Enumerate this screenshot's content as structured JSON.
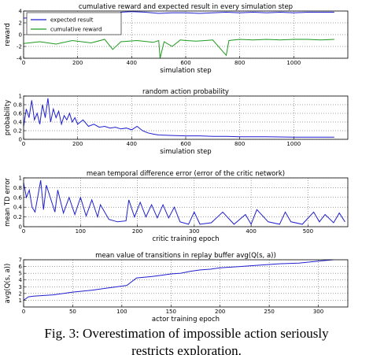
{
  "chart_data": [
    {
      "type": "line",
      "title": "cumulative reward and expected result in every simulation step",
      "xlabel": "simulation step",
      "ylabel": "reward",
      "xlim": [
        0,
        1200
      ],
      "ylim": [
        -4,
        4
      ],
      "xticks": [
        0,
        200,
        400,
        600,
        800,
        1000
      ],
      "yticks": [
        -4,
        -2,
        0,
        2,
        4
      ],
      "grid": true,
      "legend": "top-left",
      "series": [
        {
          "name": "expected result",
          "color": "#1f1fcf",
          "x": [
            0,
            60,
            120,
            180,
            250,
            300,
            330,
            345,
            360,
            400,
            450,
            500,
            550,
            600,
            650,
            700,
            750,
            800,
            850,
            900,
            950,
            1000,
            1050,
            1100,
            1150
          ],
          "y": [
            2.8,
            2.9,
            2.8,
            3.0,
            2.9,
            3.0,
            3.2,
            2.7,
            3.8,
            3.9,
            3.8,
            3.6,
            3.7,
            3.7,
            3.6,
            3.7,
            3.8,
            3.7,
            3.8,
            3.7,
            3.8,
            3.7,
            3.8,
            3.8,
            3.8
          ]
        },
        {
          "name": "cumulative reward",
          "color": "#1e9a1e",
          "x": [
            0,
            60,
            120,
            180,
            250,
            300,
            330,
            360,
            420,
            480,
            500,
            505,
            520,
            550,
            580,
            600,
            640,
            700,
            750,
            760,
            800,
            850,
            900,
            950,
            1000,
            1050,
            1100,
            1150
          ],
          "y": [
            -1.5,
            -1.2,
            -1.6,
            -1.0,
            -1.4,
            -0.8,
            -2.5,
            -1.2,
            -1.0,
            -1.3,
            -1.0,
            -4.0,
            -1.2,
            -2.0,
            -0.9,
            -1.0,
            -1.1,
            -0.9,
            -3.5,
            -1.0,
            -0.8,
            -0.9,
            -0.8,
            -0.9,
            -0.8,
            -0.8,
            -0.9,
            -0.8
          ]
        }
      ]
    },
    {
      "type": "line",
      "title": "random action probability",
      "xlabel": "simulation step",
      "ylabel": "probability",
      "xlim": [
        0,
        1200
      ],
      "ylim": [
        0,
        1.0
      ],
      "xticks": [
        0,
        200,
        400,
        600,
        800,
        1000
      ],
      "yticks": [
        0.0,
        0.2,
        0.4,
        0.6,
        0.8,
        1.0
      ],
      "grid": true,
      "series": [
        {
          "name": "",
          "color": "#1f1fcf",
          "x": [
            0,
            10,
            20,
            30,
            40,
            50,
            60,
            70,
            80,
            90,
            100,
            110,
            120,
            130,
            140,
            150,
            160,
            170,
            180,
            190,
            200,
            220,
            240,
            260,
            280,
            300,
            320,
            340,
            360,
            380,
            400,
            420,
            440,
            460,
            480,
            500,
            550,
            600,
            650,
            700,
            750,
            800,
            900,
            1000,
            1100,
            1150
          ],
          "y": [
            0.3,
            0.7,
            0.5,
            0.9,
            0.45,
            0.6,
            0.35,
            0.8,
            0.5,
            0.95,
            0.4,
            0.7,
            0.5,
            0.65,
            0.35,
            0.55,
            0.45,
            0.6,
            0.4,
            0.5,
            0.35,
            0.45,
            0.3,
            0.35,
            0.28,
            0.3,
            0.26,
            0.28,
            0.24,
            0.26,
            0.22,
            0.3,
            0.2,
            0.15,
            0.12,
            0.1,
            0.09,
            0.08,
            0.08,
            0.07,
            0.07,
            0.06,
            0.06,
            0.05,
            0.05,
            0.05
          ]
        }
      ]
    },
    {
      "type": "line",
      "title": "mean temporal difference error (error of the critic network)",
      "xlabel": "critic training epoch",
      "ylabel": "mean TD error",
      "xlim": [
        0,
        570
      ],
      "ylim": [
        0,
        1.0
      ],
      "xticks": [
        0,
        100,
        200,
        300,
        400,
        500
      ],
      "yticks": [
        0.0,
        0.2,
        0.4,
        0.6,
        0.8,
        1.0
      ],
      "grid": true,
      "series": [
        {
          "name": "",
          "color": "#1f1fcf",
          "x": [
            0,
            5,
            10,
            15,
            20,
            30,
            35,
            40,
            55,
            60,
            70,
            80,
            90,
            100,
            110,
            120,
            130,
            135,
            150,
            165,
            180,
            185,
            195,
            205,
            215,
            225,
            235,
            245,
            255,
            265,
            275,
            290,
            300,
            310,
            330,
            350,
            370,
            390,
            400,
            410,
            430,
            450,
            460,
            470,
            490,
            510,
            520,
            530,
            545,
            555,
            565
          ],
          "y": [
            0.9,
            0.6,
            0.75,
            0.4,
            0.3,
            0.95,
            0.35,
            0.85,
            0.3,
            0.75,
            0.28,
            0.6,
            0.25,
            0.6,
            0.22,
            0.55,
            0.2,
            0.45,
            0.15,
            0.1,
            0.12,
            0.55,
            0.2,
            0.5,
            0.2,
            0.45,
            0.18,
            0.45,
            0.18,
            0.4,
            0.1,
            0.05,
            0.3,
            0.05,
            0.08,
            0.3,
            0.05,
            0.25,
            0.05,
            0.35,
            0.1,
            0.05,
            0.3,
            0.1,
            0.05,
            0.3,
            0.1,
            0.25,
            0.08,
            0.28,
            0.1
          ]
        }
      ]
    },
    {
      "type": "line",
      "title": "mean value of transitions in replay buffer avg(Q(s, a))",
      "xlabel": "actor training epoch",
      "ylabel": "avg(Q(s, a))",
      "xlim": [
        0,
        330
      ],
      "ylim": [
        0,
        7
      ],
      "xticks": [
        0,
        50,
        100,
        150,
        200,
        250,
        300
      ],
      "yticks": [
        1,
        2,
        3,
        4,
        5,
        6,
        7
      ],
      "grid": true,
      "series": [
        {
          "name": "",
          "color": "#1f1fcf",
          "x": [
            0,
            5,
            10,
            30,
            50,
            70,
            90,
            105,
            115,
            130,
            140,
            150,
            160,
            170,
            180,
            190,
            200,
            220,
            240,
            260,
            280,
            300,
            315
          ],
          "y": [
            1.0,
            1.5,
            1.6,
            1.8,
            2.2,
            2.5,
            2.9,
            3.2,
            4.3,
            4.5,
            4.7,
            4.9,
            5.0,
            5.3,
            5.5,
            5.6,
            5.8,
            6.0,
            6.2,
            6.4,
            6.5,
            6.8,
            7.0
          ]
        }
      ]
    }
  ],
  "caption": {
    "line1": "Fig. 3:  Overestimation of impossible action seriously",
    "line2": "restricts exploration."
  }
}
